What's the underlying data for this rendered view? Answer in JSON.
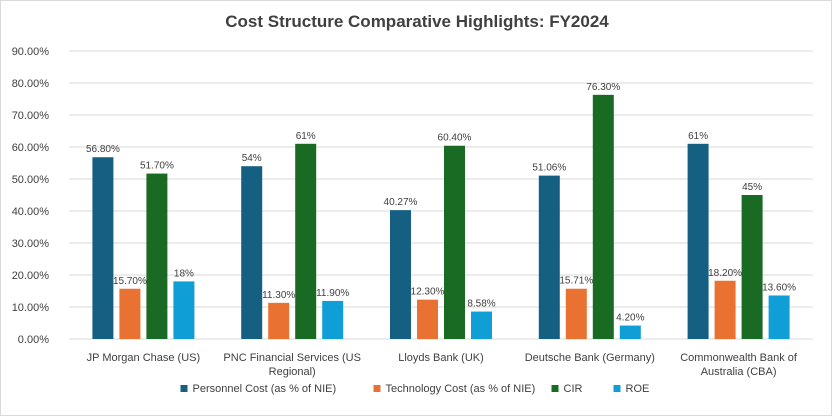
{
  "chart_data": {
    "type": "bar",
    "title": "Cost Structure Comparative Highlights: FY2024",
    "categories": [
      [
        "JP Morgan Chase (US)"
      ],
      [
        "PNC Financial Services (US",
        "Regional)"
      ],
      [
        "Lloyds Bank (UK)"
      ],
      [
        "Deutsche Bank (Germany)"
      ],
      [
        "Commonwealth Bank of",
        "Australia (CBA)"
      ]
    ],
    "series": [
      {
        "name": "Personnel Cost (as % of NIE)",
        "color": "#156082",
        "values": [
          56.8,
          54,
          40.27,
          51.06,
          61
        ],
        "labels": [
          "56.80%",
          "54%",
          "40.27%",
          "51.06%",
          "61%"
        ]
      },
      {
        "name": "Technology Cost (as % of NIE)",
        "color": "#E97132",
        "values": [
          15.7,
          11.3,
          12.3,
          15.71,
          18.2
        ],
        "labels": [
          "15.70%",
          "11.30%",
          "12.30%",
          "15.71%",
          "18.20%"
        ]
      },
      {
        "name": "CIR",
        "color": "#196B24",
        "values": [
          51.7,
          61,
          60.4,
          76.3,
          45
        ],
        "labels": [
          "51.70%",
          "61%",
          "60.40%",
          "76.30%",
          "45%"
        ]
      },
      {
        "name": "ROE",
        "color": "#0F9ED5",
        "values": [
          18,
          11.9,
          8.58,
          4.2,
          13.6
        ],
        "labels": [
          "18%",
          "11.90%",
          "8.58%",
          "4.20%",
          "13.60%"
        ]
      }
    ],
    "ylim": [
      0,
      90
    ],
    "yticks": [
      0,
      10,
      20,
      30,
      40,
      50,
      60,
      70,
      80,
      90
    ],
    "ytick_labels": [
      "0.00%",
      "10.00%",
      "20.00%",
      "30.00%",
      "40.00%",
      "50.00%",
      "60.00%",
      "70.00%",
      "80.00%",
      "90.00%"
    ],
    "grid": true,
    "legend": "bottom"
  }
}
